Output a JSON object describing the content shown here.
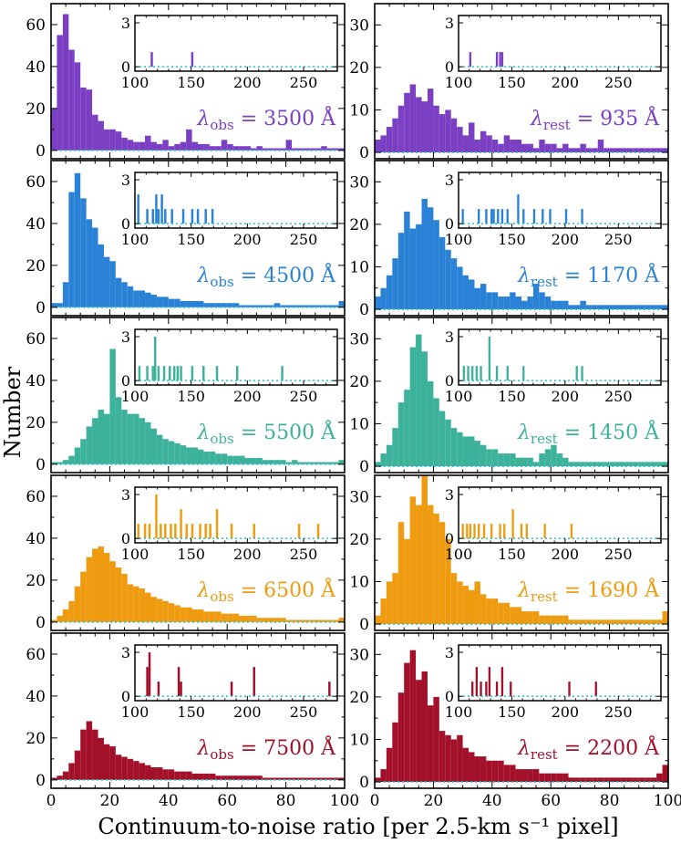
{
  "figure": {
    "xlabel": "Continuum-to-noise ratio [per 2.5-km s⁻¹ pixel]",
    "ylabel": "Number",
    "colors": [
      "#7b3fc4",
      "#2a82d6",
      "#3db29a",
      "#ee9b10",
      "#a3102a"
    ],
    "baseline_color": "#21c4cc"
  },
  "chart_data": [
    {
      "type": "bar",
      "panel": "obs-3500",
      "title": "3500 Å",
      "label_sym": "λ",
      "label_sub": "obs",
      "label_tail": " = 3500 Å",
      "color": "#7b3fc4",
      "xlim": [
        0,
        100
      ],
      "ylim": [
        -4,
        70
      ],
      "yticks": [
        0,
        20,
        40,
        60
      ],
      "values": [
        20,
        55,
        65,
        48,
        42,
        30,
        29,
        17,
        14,
        10,
        10,
        9,
        6,
        5,
        4,
        4,
        7,
        4,
        3,
        5,
        2,
        3,
        4,
        10,
        4,
        3,
        3,
        2,
        2,
        5,
        3,
        2,
        2,
        2,
        1,
        2,
        1,
        1,
        1,
        1,
        5,
        1,
        1,
        1,
        1,
        1,
        2,
        1,
        1,
        1
      ],
      "inset": {
        "xlim": [
          100,
          280
        ],
        "ylim": [
          -0.3,
          3.5
        ],
        "yticks": [
          0,
          3
        ],
        "xticks": [
          100,
          150,
          200,
          250
        ],
        "x": [
          114,
          150
        ],
        "y": [
          1,
          1
        ]
      }
    },
    {
      "type": "bar",
      "panel": "rest-935",
      "title": "935 Å",
      "label_sym": "λ",
      "label_sub": "rest",
      "label_tail": " = 935 Å",
      "color": "#7b3fc4",
      "xlim": [
        0,
        100
      ],
      "ylim": [
        -1.5,
        35
      ],
      "yticks": [
        0,
        10,
        20,
        30
      ],
      "values": [
        3,
        4,
        6,
        8,
        11,
        14,
        16,
        13,
        12,
        15,
        11,
        9,
        10,
        8,
        6,
        4,
        7,
        3,
        5,
        4,
        3,
        2,
        4,
        3,
        3,
        2,
        2,
        1,
        3,
        2,
        2,
        1,
        2,
        1,
        1,
        2,
        1,
        1,
        3,
        1,
        1,
        1,
        1,
        1,
        1,
        1,
        1,
        1,
        1,
        1
      ],
      "inset": {
        "xlim": [
          100,
          290
        ],
        "ylim": [
          -0.3,
          3.5
        ],
        "yticks": [
          0,
          3
        ],
        "xticks": [
          100,
          150,
          200,
          250
        ],
        "x": [
          110,
          135,
          138,
          140
        ],
        "y": [
          1,
          1,
          1,
          1
        ]
      }
    },
    {
      "type": "bar",
      "panel": "obs-4500",
      "title": "4500 Å",
      "label_sym": "λ",
      "label_sub": "obs",
      "label_tail": " = 4500 Å",
      "color": "#2a82d6",
      "xlim": [
        0,
        100
      ],
      "ylim": [
        -4,
        70
      ],
      "yticks": [
        0,
        20,
        40,
        60
      ],
      "values": [
        2,
        2,
        12,
        55,
        64,
        52,
        42,
        38,
        30,
        24,
        22,
        14,
        12,
        10,
        8,
        8,
        7,
        6,
        5,
        5,
        4,
        4,
        3,
        3,
        3,
        3,
        2,
        2,
        2,
        2,
        2,
        2,
        1,
        1,
        1,
        1,
        1,
        1,
        2,
        1,
        1,
        1,
        1,
        1,
        1,
        1,
        1,
        1,
        1,
        3
      ],
      "inset": {
        "xlim": [
          100,
          280
        ],
        "ylim": [
          -0.3,
          3.5
        ],
        "yticks": [
          0,
          3
        ],
        "xticks": [
          100,
          150,
          200,
          250
        ],
        "x": [
          102,
          110,
          115,
          118,
          120,
          123,
          126,
          132,
          142,
          150,
          155,
          162,
          168
        ],
        "y": [
          2,
          1,
          1,
          2,
          1,
          2,
          1,
          1,
          1,
          1,
          1,
          1,
          1
        ]
      }
    },
    {
      "type": "bar",
      "panel": "rest-1170",
      "title": "1170 Å",
      "label_sym": "λ",
      "label_sub": "rest",
      "label_tail": " = 1170 Å",
      "color": "#2a82d6",
      "xlim": [
        0,
        100
      ],
      "ylim": [
        -1.5,
        35
      ],
      "yticks": [
        0,
        10,
        20,
        30
      ],
      "values": [
        3,
        5,
        8,
        12,
        18,
        23,
        19,
        20,
        26,
        24,
        21,
        17,
        14,
        12,
        10,
        8,
        7,
        5,
        6,
        4,
        4,
        3,
        3,
        4,
        3,
        2,
        3,
        6,
        4,
        3,
        2,
        2,
        2,
        1,
        1,
        2,
        1,
        1,
        1,
        1,
        1,
        1,
        1,
        1,
        1,
        1,
        1,
        1,
        1,
        1
      ],
      "inset": {
        "xlim": [
          100,
          290
        ],
        "ylim": [
          -0.3,
          3.5
        ],
        "yticks": [
          0,
          3
        ],
        "xticks": [
          100,
          150,
          200,
          250
        ],
        "x": [
          103,
          118,
          125,
          130,
          132,
          136,
          140,
          145,
          155,
          160,
          170,
          178,
          185,
          200,
          215
        ],
        "y": [
          1,
          1,
          1,
          1,
          1,
          1,
          1,
          1,
          2,
          1,
          1,
          1,
          1,
          1,
          1
        ]
      }
    },
    {
      "type": "bar",
      "panel": "obs-5500",
      "title": "5500 Å",
      "label_sym": "λ",
      "label_sub": "obs",
      "label_tail": " = 5500 Å",
      "color": "#3db29a",
      "xlim": [
        0,
        100
      ],
      "ylim": [
        -4,
        70
      ],
      "yticks": [
        0,
        20,
        40,
        60
      ],
      "values": [
        1,
        1,
        2,
        4,
        8,
        12,
        18,
        22,
        26,
        24,
        55,
        32,
        26,
        24,
        24,
        22,
        20,
        17,
        14,
        12,
        11,
        10,
        9,
        8,
        8,
        7,
        6,
        6,
        5,
        5,
        4,
        4,
        4,
        3,
        3,
        3,
        2,
        2,
        2,
        2,
        1,
        2,
        1,
        1,
        1,
        1,
        1,
        1,
        1,
        2
      ],
      "inset": {
        "xlim": [
          100,
          280
        ],
        "ylim": [
          -0.3,
          3.5
        ],
        "yticks": [
          0,
          3
        ],
        "xticks": [
          100,
          150,
          200,
          250
        ],
        "x": [
          103,
          110,
          115,
          117,
          120,
          125,
          130,
          134,
          137,
          140,
          150,
          160,
          172,
          190,
          230
        ],
        "y": [
          1,
          1,
          1,
          3,
          1,
          1,
          1,
          1,
          1,
          1,
          1,
          1,
          1,
          1,
          1
        ]
      }
    },
    {
      "type": "bar",
      "panel": "rest-1450",
      "title": "1450 Å",
      "label_sym": "λ",
      "label_sub": "rest",
      "label_tail": " = 1450 Å",
      "color": "#3db29a",
      "xlim": [
        0,
        100
      ],
      "ylim": [
        -1.5,
        35
      ],
      "yticks": [
        0,
        10,
        20,
        30
      ],
      "values": [
        1,
        3,
        5,
        9,
        15,
        18,
        28,
        31,
        27,
        20,
        16,
        13,
        11,
        9,
        8,
        7,
        7,
        6,
        5,
        4,
        4,
        3,
        3,
        3,
        2,
        2,
        2,
        1,
        3,
        4,
        5,
        3,
        2,
        1,
        1,
        1,
        1,
        1,
        1,
        1,
        1,
        1,
        1,
        1,
        1,
        1,
        1,
        1,
        1,
        1
      ],
      "inset": {
        "xlim": [
          100,
          290
        ],
        "ylim": [
          -0.3,
          3.5
        ],
        "yticks": [
          0,
          3
        ],
        "xticks": [
          100,
          150,
          200,
          250
        ],
        "x": [
          104,
          108,
          112,
          116,
          120,
          128,
          135,
          145,
          160,
          210,
          215
        ],
        "y": [
          1,
          1,
          1,
          1,
          1,
          3,
          1,
          1,
          1,
          1,
          1
        ]
      }
    },
    {
      "type": "bar",
      "panel": "obs-6500",
      "title": "6500 Å",
      "label_sym": "λ",
      "label_sub": "obs",
      "label_tail": " = 6500 Å",
      "color": "#ee9b10",
      "xlim": [
        0,
        100
      ],
      "ylim": [
        -4,
        70
      ],
      "yticks": [
        0,
        20,
        40,
        60
      ],
      "values": [
        1,
        3,
        6,
        10,
        17,
        24,
        31,
        35,
        36,
        33,
        29,
        26,
        23,
        18,
        17,
        16,
        14,
        12,
        11,
        10,
        9,
        8,
        7,
        7,
        6,
        6,
        5,
        5,
        5,
        4,
        4,
        4,
        3,
        3,
        3,
        2,
        2,
        2,
        2,
        2,
        1,
        1,
        1,
        1,
        1,
        1,
        1,
        1,
        1,
        2
      ],
      "inset": {
        "xlim": [
          100,
          280
        ],
        "ylim": [
          -0.3,
          3.5
        ],
        "yticks": [
          0,
          3
        ],
        "xticks": [
          100,
          150,
          200,
          250
        ],
        "x": [
          102,
          108,
          112,
          118,
          122,
          126,
          131,
          135,
          140,
          145,
          150,
          157,
          162,
          166,
          172,
          185,
          205,
          245,
          262
        ],
        "y": [
          1,
          1,
          1,
          3,
          1,
          1,
          1,
          1,
          2,
          1,
          1,
          1,
          1,
          1,
          2,
          1,
          1,
          1,
          1
        ]
      }
    },
    {
      "type": "bar",
      "panel": "rest-1690",
      "title": "1690 Å",
      "label_sym": "λ",
      "label_sub": "rest",
      "label_tail": " = 1690 Å",
      "color": "#ee9b10",
      "xlim": [
        0,
        100
      ],
      "ylim": [
        -1.5,
        35
      ],
      "yticks": [
        0,
        10,
        20,
        30
      ],
      "values": [
        2,
        6,
        10,
        12,
        24,
        20,
        30,
        28,
        35,
        28,
        26,
        24,
        20,
        12,
        10,
        9,
        8,
        10,
        7,
        6,
        6,
        5,
        5,
        4,
        4,
        3,
        3,
        3,
        2,
        2,
        2,
        2,
        2,
        1,
        1,
        1,
        1,
        1,
        1,
        1,
        1,
        1,
        1,
        1,
        1,
        1,
        1,
        1,
        1,
        3
      ],
      "inset": {
        "xlim": [
          100,
          290
        ],
        "ylim": [
          -0.3,
          3.5
        ],
        "yticks": [
          0,
          3
        ],
        "xticks": [
          100,
          150,
          200,
          250
        ],
        "x": [
          103,
          107,
          110,
          114,
          118,
          123,
          130,
          138,
          142,
          150,
          158,
          163,
          180,
          205
        ],
        "y": [
          1,
          1,
          1,
          1,
          1,
          1,
          1,
          1,
          1,
          2,
          1,
          1,
          1,
          1
        ]
      }
    },
    {
      "type": "bar",
      "panel": "obs-7500",
      "title": "7500 Å",
      "label_sym": "λ",
      "label_sub": "obs",
      "label_tail": " = 7500 Å",
      "color": "#a3102a",
      "xlim": [
        0,
        100
      ],
      "ylim": [
        -4,
        70
      ],
      "yticks": [
        0,
        20,
        40,
        60
      ],
      "values": [
        1,
        2,
        4,
        8,
        14,
        24,
        28,
        24,
        20,
        17,
        16,
        12,
        11,
        10,
        9,
        8,
        7,
        6,
        6,
        5,
        5,
        4,
        4,
        4,
        3,
        3,
        3,
        3,
        2,
        2,
        2,
        2,
        2,
        2,
        2,
        2,
        1,
        1,
        1,
        1,
        1,
        1,
        1,
        1,
        1,
        1,
        1,
        1,
        1,
        1
      ],
      "inset": {
        "xlim": [
          100,
          280
        ],
        "ylim": [
          -0.3,
          3.5
        ],
        "yticks": [
          0,
          3
        ],
        "xticks": [
          100,
          150,
          200,
          250
        ],
        "x": [
          110,
          112,
          120,
          138,
          140,
          185,
          205,
          272
        ],
        "y": [
          2,
          3,
          1,
          2,
          1,
          1,
          2,
          1
        ]
      }
    },
    {
      "type": "bar",
      "panel": "rest-2200",
      "title": "2200 Å",
      "label_sym": "λ",
      "label_sub": "rest",
      "label_tail": " = 2200 Å",
      "color": "#a3102a",
      "xlim": [
        0,
        100
      ],
      "ylim": [
        -1.5,
        35
      ],
      "yticks": [
        0,
        10,
        20,
        30
      ],
      "values": [
        1,
        3,
        8,
        14,
        21,
        28,
        31,
        24,
        26,
        18,
        20,
        12,
        11,
        10,
        11,
        8,
        7,
        6,
        6,
        5,
        5,
        5,
        4,
        4,
        3,
        3,
        3,
        3,
        2,
        2,
        2,
        2,
        2,
        1,
        1,
        1,
        1,
        1,
        1,
        1,
        1,
        1,
        1,
        1,
        1,
        1,
        1,
        1,
        2,
        4
      ],
      "inset": {
        "xlim": [
          100,
          290
        ],
        "ylim": [
          -0.3,
          3.5
        ],
        "yticks": [
          0,
          3
        ],
        "xticks": [
          100,
          150,
          200,
          250
        ],
        "x": [
          112,
          116,
          120,
          125,
          128,
          135,
          140,
          148,
          203,
          228
        ],
        "y": [
          1,
          2,
          1,
          1,
          2,
          1,
          2,
          1,
          1,
          1
        ]
      }
    }
  ]
}
